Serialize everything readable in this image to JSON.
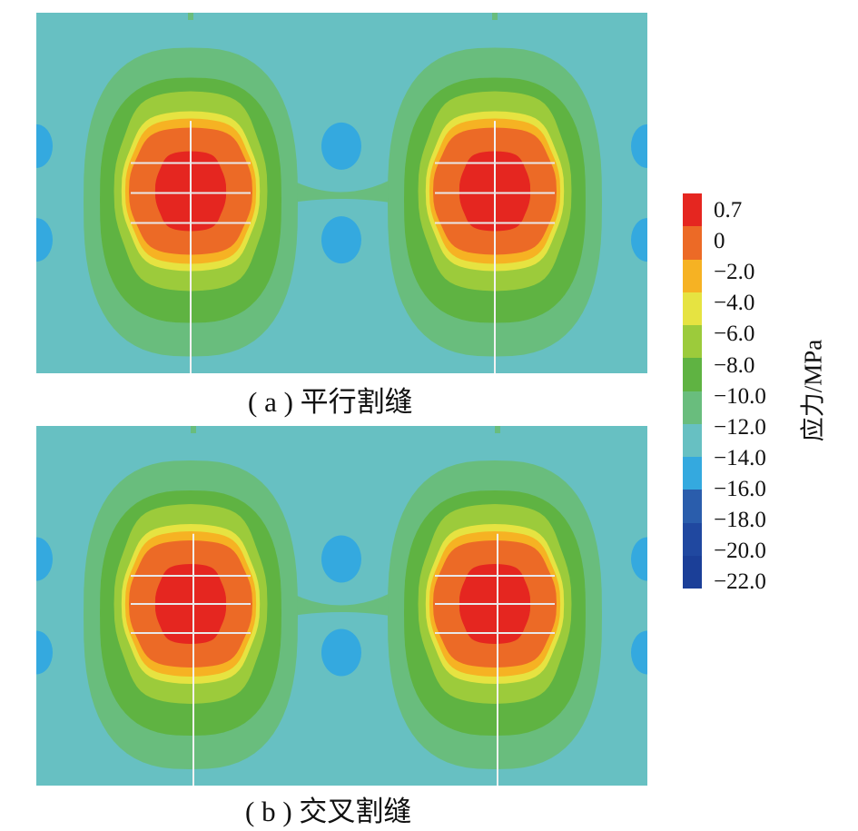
{
  "panels": [
    {
      "caption": "( a ) 平行割缝",
      "variant": "parallel"
    },
    {
      "caption": "( b ) 交叉割缝",
      "variant": "cross"
    }
  ],
  "legend": {
    "title": "应力/MPa",
    "ticks": [
      "0.7",
      "0",
      "−2.0",
      "−4.0",
      "−6.0",
      "−8.0",
      "−10.0",
      "−12.0",
      "−14.0",
      "−16.0",
      "−18.0",
      "−20.0",
      "−22.0"
    ],
    "colors": [
      "#e52620",
      "#ec6a26",
      "#f6b223",
      "#e6e341",
      "#9ccb3b",
      "#5fb342",
      "#69bd7d",
      "#67c0c2",
      "#34a9df",
      "#2a5dac",
      "#2048a0",
      "#1b3f98"
    ]
  }
}
